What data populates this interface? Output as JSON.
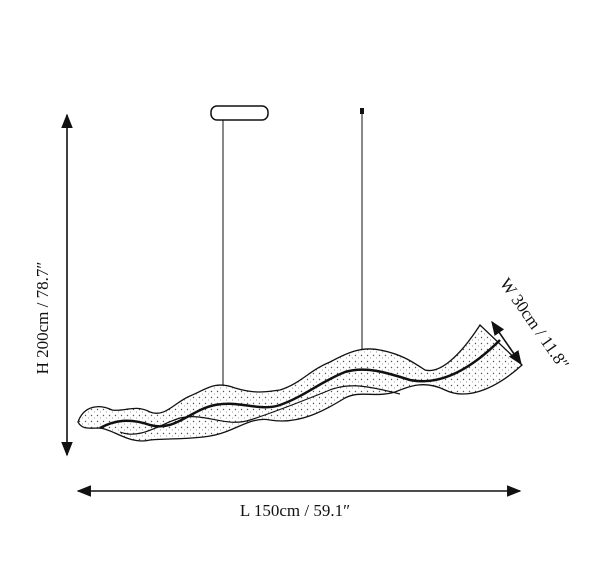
{
  "dimensions": {
    "height": "H 200cm / 78.7″",
    "width": "W 30cm / 11.8″",
    "length": "L 150cm / 59.1″"
  }
}
